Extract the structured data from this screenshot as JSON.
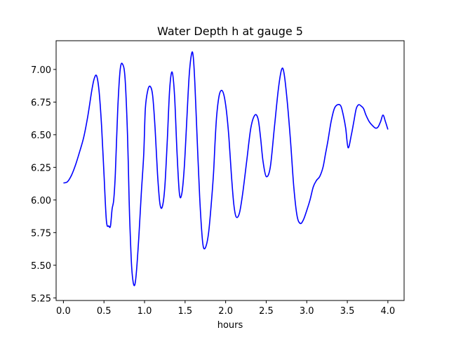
{
  "chart_data": {
    "type": "line",
    "title": "Water Depth h at gauge 5",
    "xlabel": "hours",
    "ylabel": "",
    "xlim": [
      -0.09,
      4.2
    ],
    "ylim": [
      5.23,
      7.22
    ],
    "xticks": [
      0.0,
      0.5,
      1.0,
      1.5,
      2.0,
      2.5,
      3.0,
      3.5,
      4.0
    ],
    "xtick_labels": [
      "0.0",
      "0.5",
      "1.0",
      "1.5",
      "2.0",
      "2.5",
      "3.0",
      "3.5",
      "4.0"
    ],
    "yticks": [
      5.25,
      5.5,
      5.75,
      6.0,
      6.25,
      6.5,
      6.75,
      7.0
    ],
    "ytick_labels": [
      "5.25",
      "5.50",
      "5.75",
      "6.00",
      "6.25",
      "6.50",
      "6.75",
      "7.00"
    ],
    "grid": false,
    "legend": false,
    "series": [
      {
        "color": "#0000ff",
        "x": [
          0.0,
          0.05,
          0.1,
          0.15,
          0.2,
          0.25,
          0.3,
          0.35,
          0.38,
          0.41,
          0.44,
          0.47,
          0.5,
          0.53,
          0.56,
          0.58,
          0.6,
          0.62,
          0.64,
          0.67,
          0.7,
          0.73,
          0.76,
          0.79,
          0.81,
          0.82,
          0.84,
          0.86,
          0.88,
          0.9,
          0.93,
          0.96,
          0.99,
          1.01,
          1.04,
          1.07,
          1.1,
          1.13,
          1.16,
          1.19,
          1.22,
          1.25,
          1.28,
          1.31,
          1.34,
          1.37,
          1.4,
          1.43,
          1.46,
          1.49,
          1.52,
          1.55,
          1.58,
          1.6,
          1.62,
          1.65,
          1.68,
          1.71,
          1.73,
          1.76,
          1.79,
          1.82,
          1.85,
          1.87,
          1.89,
          1.92,
          1.95,
          1.98,
          2.01,
          2.04,
          2.07,
          2.1,
          2.13,
          2.17,
          2.21,
          2.26,
          2.31,
          2.36,
          2.4,
          2.43,
          2.46,
          2.5,
          2.55,
          2.6,
          2.65,
          2.69,
          2.72,
          2.76,
          2.8,
          2.84,
          2.88,
          2.92,
          2.96,
          3.0,
          3.04,
          3.08,
          3.12,
          3.16,
          3.2,
          3.23,
          3.26,
          3.3,
          3.34,
          3.38,
          3.42,
          3.45,
          3.48,
          3.51,
          3.55,
          3.58,
          3.61,
          3.64,
          3.67,
          3.7,
          3.73,
          3.77,
          3.81,
          3.85,
          3.88,
          3.91,
          3.94,
          3.97,
          4.0
        ],
        "y": [
          6.13,
          6.14,
          6.19,
          6.27,
          6.37,
          6.48,
          6.64,
          6.84,
          6.93,
          6.95,
          6.83,
          6.57,
          6.2,
          5.84,
          5.8,
          5.8,
          5.93,
          6.0,
          6.2,
          6.7,
          7.0,
          7.04,
          6.93,
          6.5,
          6.0,
          5.8,
          5.5,
          5.37,
          5.35,
          5.45,
          5.72,
          6.05,
          6.35,
          6.7,
          6.84,
          6.87,
          6.8,
          6.55,
          6.2,
          5.97,
          5.95,
          6.1,
          6.45,
          6.85,
          6.98,
          6.8,
          6.37,
          6.05,
          6.05,
          6.25,
          6.6,
          6.95,
          7.12,
          7.1,
          6.9,
          6.45,
          6.02,
          5.72,
          5.63,
          5.65,
          5.75,
          5.95,
          6.2,
          6.45,
          6.65,
          6.8,
          6.84,
          6.8,
          6.68,
          6.48,
          6.2,
          5.97,
          5.87,
          5.9,
          6.05,
          6.3,
          6.55,
          6.65,
          6.62,
          6.48,
          6.3,
          6.18,
          6.25,
          6.55,
          6.85,
          7.0,
          6.97,
          6.75,
          6.45,
          6.1,
          5.88,
          5.82,
          5.85,
          5.92,
          6.0,
          6.1,
          6.15,
          6.18,
          6.25,
          6.35,
          6.45,
          6.6,
          6.7,
          6.73,
          6.72,
          6.65,
          6.55,
          6.4,
          6.5,
          6.6,
          6.7,
          6.73,
          6.72,
          6.7,
          6.65,
          6.6,
          6.57,
          6.55,
          6.56,
          6.6,
          6.65,
          6.6,
          6.54
        ]
      }
    ]
  }
}
